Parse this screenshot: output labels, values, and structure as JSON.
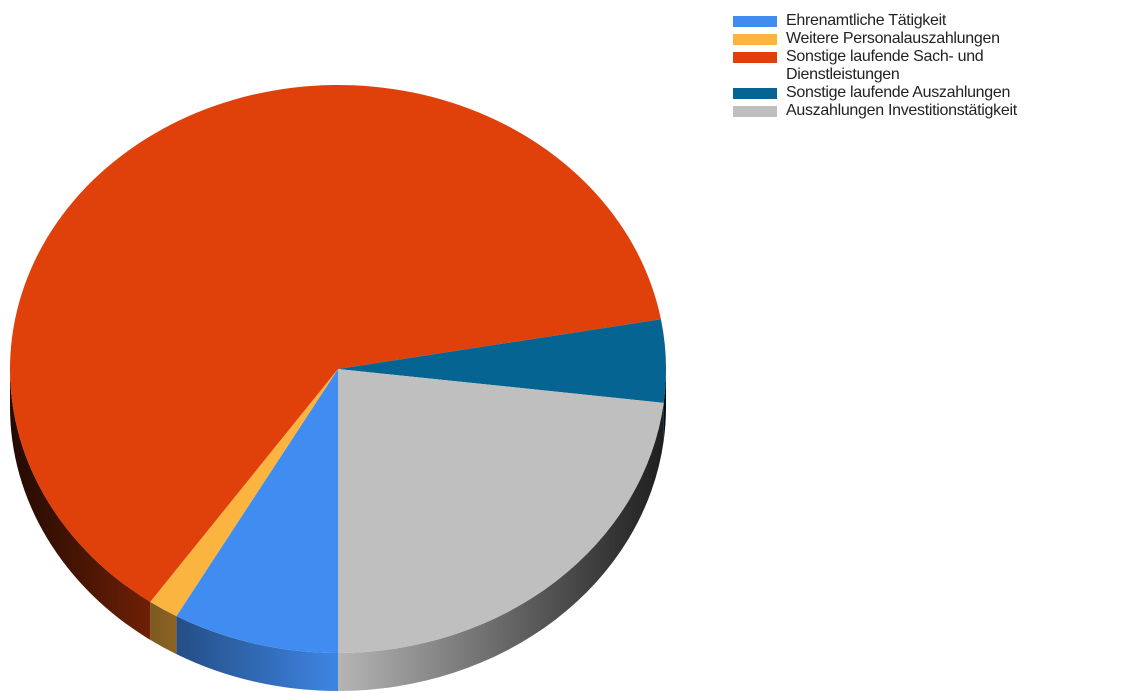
{
  "chart_data": {
    "type": "pie",
    "style": "3d",
    "title": "",
    "legend_position": "top-right",
    "start_angle_deg": 90,
    "direction": "clockwise",
    "slices": [
      {
        "label": "Ehrenamtliche Tätigkeit",
        "value": 8.2,
        "color": "#418CF0"
      },
      {
        "label": "Weitere Personalauszahlungen",
        "value": 1.5,
        "color": "#FCB441"
      },
      {
        "label": "Sonstige laufende Sach- und Dienstleistungen",
        "value": 62.5,
        "color": "#E0400A"
      },
      {
        "label": "Sonstige laufende Auszahlungen",
        "value": 4.7,
        "color": "#056492"
      },
      {
        "label": "Auszahlungen Investitionstätigkeit",
        "value": 23.1,
        "color": "#BFBFBF"
      }
    ]
  },
  "legend": {
    "items": [
      {
        "label": "Ehrenamtliche Tätigkeit",
        "color": "#418CF0"
      },
      {
        "label": "Weitere Personalauszahlungen",
        "color": "#FCB441"
      },
      {
        "label": "Sonstige laufende Sach- und Dienstleistungen",
        "color": "#E0400A"
      },
      {
        "label": "Sonstige laufende Auszahlungen",
        "color": "#056492"
      },
      {
        "label": "Auszahlungen Investitionstätigkeit",
        "color": "#BFBFBF"
      }
    ]
  }
}
